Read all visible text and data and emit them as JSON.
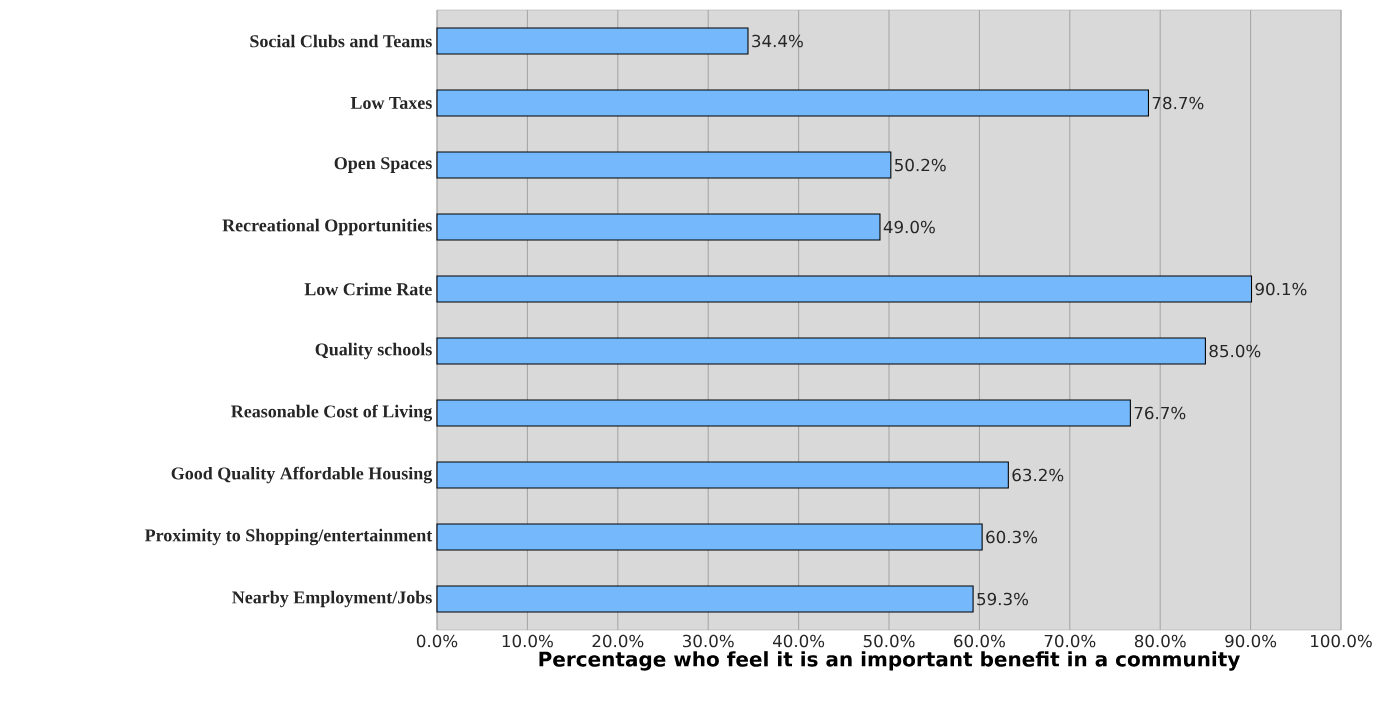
{
  "chart_data": {
    "type": "bar",
    "orientation": "horizontal",
    "xlabel": "Percentage who feel it is an important benefit in a community",
    "categories": [
      "Social Clubs and Teams",
      "Low Taxes",
      "Open Spaces",
      "Recreational Opportunities",
      "Low Crime Rate",
      "Quality schools",
      "Reasonable Cost of Living",
      "Good Quality Affordable Housing",
      "Proximity to Shopping/entertainment",
      "Nearby Employment/Jobs"
    ],
    "values": [
      34.4,
      78.7,
      50.2,
      49.0,
      90.1,
      85.0,
      76.7,
      63.2,
      60.3,
      59.3
    ],
    "value_labels": [
      "34.4%",
      "78.7%",
      "50.2%",
      "49.0%",
      "90.1%",
      "85.0%",
      "76.7%",
      "63.2%",
      "60.3%",
      "59.3%"
    ],
    "color": "#75b8fb",
    "xlim": [
      0,
      100
    ],
    "xticks": [
      {
        "value": 0,
        "label": "0.0%"
      },
      {
        "value": 10,
        "label": "10.0%"
      },
      {
        "value": 20,
        "label": "20.0%"
      },
      {
        "value": 30,
        "label": "30.0%"
      },
      {
        "value": 40,
        "label": "40.0%"
      },
      {
        "value": 50,
        "label": "50.0%"
      },
      {
        "value": 60,
        "label": "60.0%"
      },
      {
        "value": 70,
        "label": "70.0%"
      },
      {
        "value": 80,
        "label": "80.0%"
      },
      {
        "value": 90,
        "label": "90.0%"
      },
      {
        "value": 100,
        "label": "100.0%"
      }
    ],
    "grid": "x"
  }
}
